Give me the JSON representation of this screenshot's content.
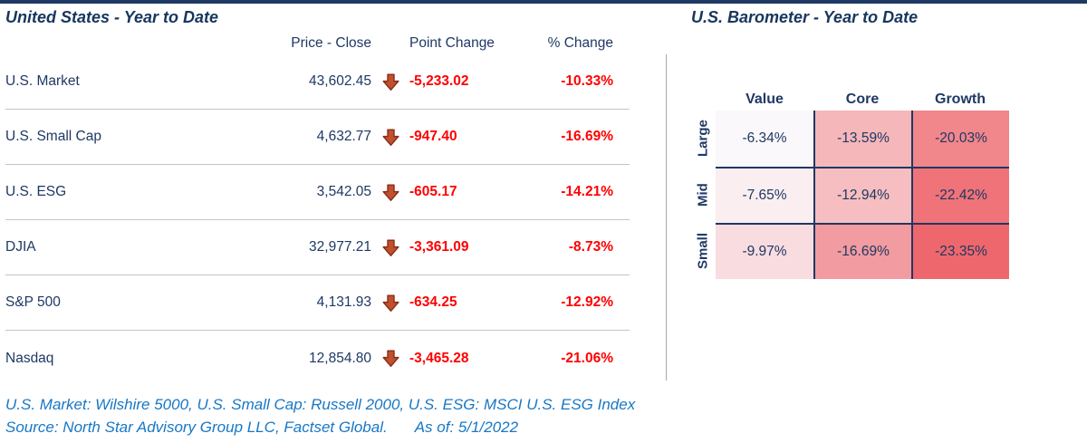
{
  "left_panel": {
    "title": "United States - Year to Date",
    "columns": {
      "price": "Price - Close",
      "point": "Point Change",
      "pct": "% Change"
    },
    "rows": [
      {
        "label": "U.S. Market",
        "price": "43,602.45",
        "direction": "down",
        "point_change": "-5,233.02",
        "pct_change": "-10.33%"
      },
      {
        "label": "U.S. Small Cap",
        "price": "4,632.77",
        "direction": "down",
        "point_change": "-947.40",
        "pct_change": "-16.69%"
      },
      {
        "label": "U.S. ESG",
        "price": "3,542.05",
        "direction": "down",
        "point_change": "-605.17",
        "pct_change": "-14.21%"
      },
      {
        "label": "DJIA",
        "price": "32,977.21",
        "direction": "down",
        "point_change": "-3,361.09",
        "pct_change": "-8.73%"
      },
      {
        "label": "S&P 500",
        "price": "4,131.93",
        "direction": "down",
        "point_change": "-634.25",
        "pct_change": "-12.92%"
      },
      {
        "label": "Nasdaq",
        "price": "12,854.80",
        "direction": "down",
        "point_change": "-3,465.28",
        "pct_change": "-21.06%"
      }
    ]
  },
  "right_panel": {
    "title": "U.S. Barometer - Year to Date",
    "column_headers": [
      "Value",
      "Core",
      "Growth"
    ],
    "row_headers": [
      "Large",
      "Mid",
      "Small"
    ],
    "cells": [
      [
        {
          "value": "-6.34%",
          "bg": "#FAF8FA"
        },
        {
          "value": "-13.59%",
          "bg": "#F5B7B9"
        },
        {
          "value": "-20.03%",
          "bg": "#F1868B"
        }
      ],
      [
        {
          "value": "-7.65%",
          "bg": "#FBEEF0"
        },
        {
          "value": "-12.94%",
          "bg": "#F6BEC0"
        },
        {
          "value": "-22.42%",
          "bg": "#EF7378"
        }
      ],
      [
        {
          "value": "-9.97%",
          "bg": "#F9DCE0"
        },
        {
          "value": "-16.69%",
          "bg": "#F29BA0"
        },
        {
          "value": "-23.35%",
          "bg": "#EE676D"
        }
      ]
    ]
  },
  "footnotes": {
    "line1": "U.S. Market: Wilshire 5000, U.S. Small Cap: Russell 2000, U.S. ESG: MSCI U.S. ESG Index",
    "line2_source": "Source: North Star Advisory Group LLC, Factset Global.",
    "line2_asof": "As of: 5/1/2022"
  },
  "colors": {
    "navy_text": "#1F3864",
    "title_navy": "#17365D",
    "negative_red": "#FF0000",
    "arrow_fill": "#C0502E",
    "arrow_stroke": "#8A2D18",
    "footnote_blue": "#1877C5",
    "separator_gray": "#C4C4C4",
    "divider_gray": "#A9A9A9",
    "heat_border_navy": "#1F3864"
  },
  "chart_data": [
    {
      "type": "table",
      "title": "United States - Year to Date",
      "columns": [
        "Price - Close",
        "Point Change",
        "% Change"
      ],
      "rows": [
        [
          "U.S. Market",
          43602.45,
          -5233.02,
          -10.33
        ],
        [
          "U.S. Small Cap",
          4632.77,
          -947.4,
          -16.69
        ],
        [
          "U.S. ESG",
          3542.05,
          -605.17,
          -14.21
        ],
        [
          "DJIA",
          32977.21,
          -3361.09,
          -8.73
        ],
        [
          "S&P 500",
          4131.93,
          -634.25,
          -12.92
        ],
        [
          "Nasdaq",
          12854.8,
          -3465.28,
          -21.06
        ]
      ],
      "notes": "All rows show red down-arrow indicators; point and % changes rendered in red"
    },
    {
      "type": "heatmap",
      "title": "U.S. Barometer - Year to Date",
      "x_labels": [
        "Value",
        "Core",
        "Growth"
      ],
      "y_labels": [
        "Large",
        "Mid",
        "Small"
      ],
      "values": [
        [
          -6.34,
          -13.59,
          -20.03
        ],
        [
          -7.65,
          -12.94,
          -22.42
        ],
        [
          -9.97,
          -16.69,
          -23.35
        ]
      ],
      "unit": "%",
      "color_scale": "white (least negative) to red (most negative)"
    }
  ]
}
